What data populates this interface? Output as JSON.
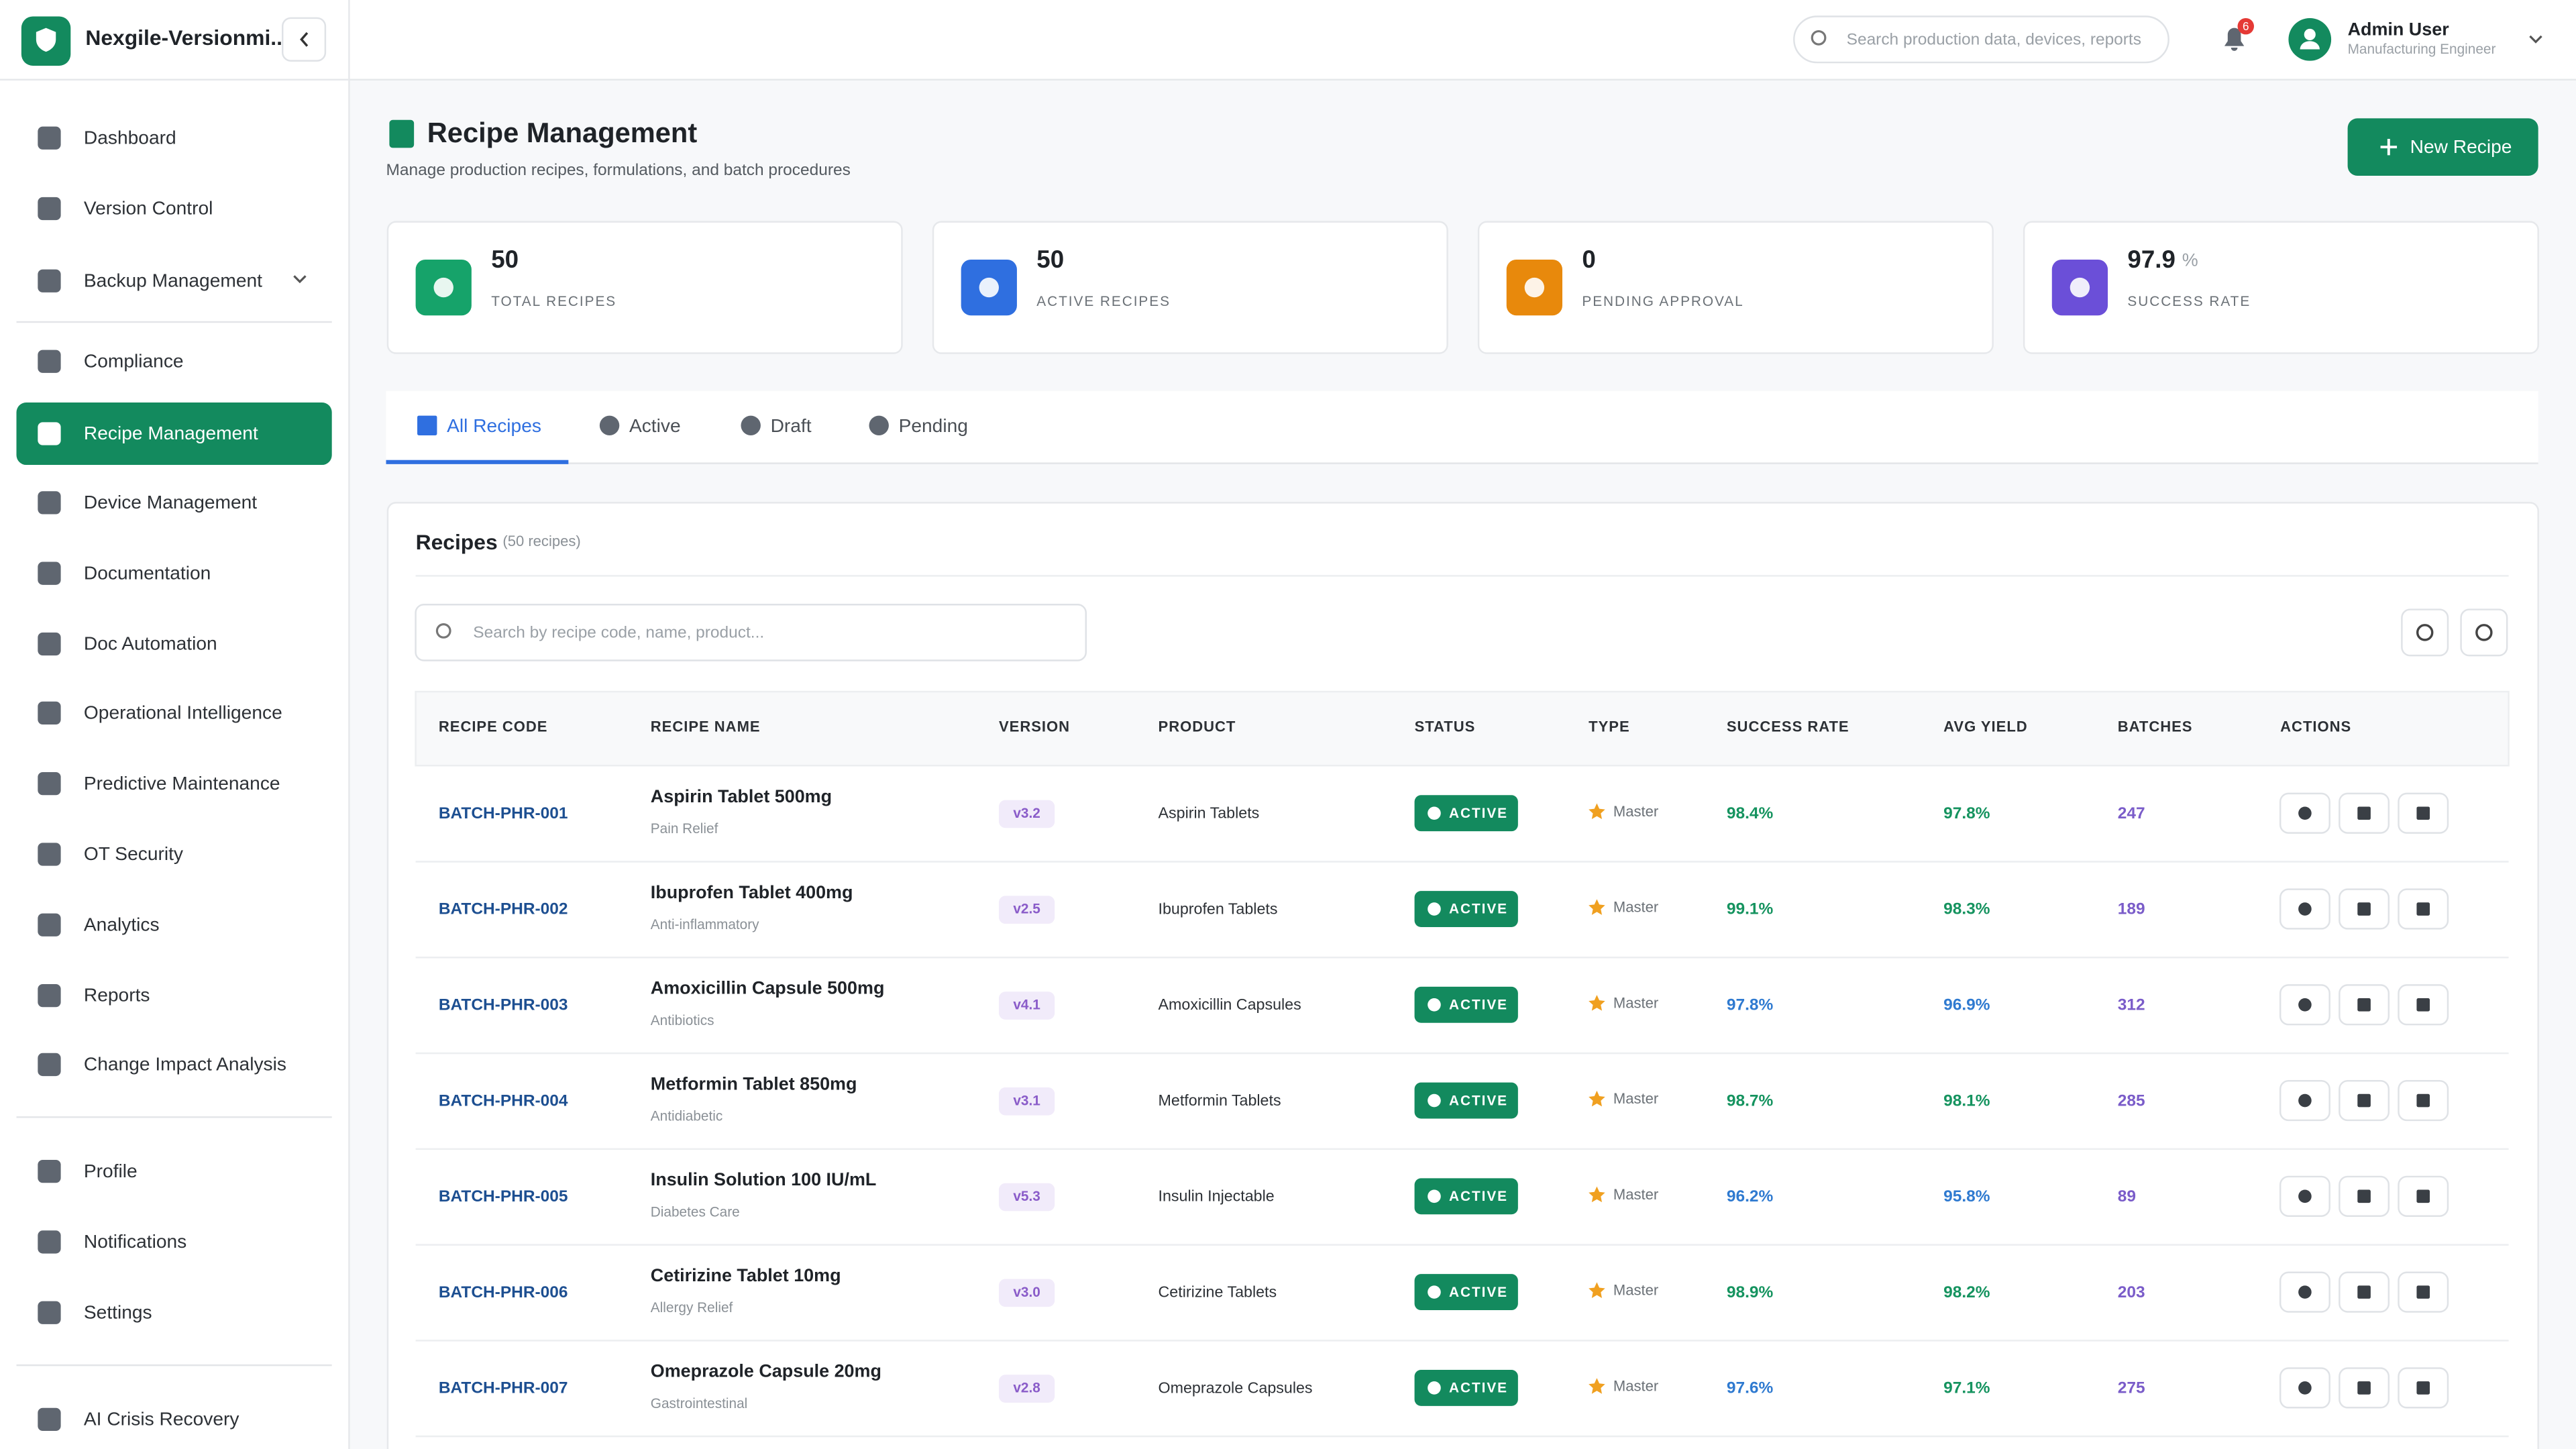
{
  "header": {
    "app_name": "Nexgile-Versionmi...",
    "search_placeholder": "Search production data, devices, reports",
    "notification_count": "6",
    "user_name": "Admin User",
    "user_role": "Manufacturing Engineer"
  },
  "sidebar": {
    "groups": [
      [
        {
          "label": "Dashboard"
        },
        {
          "label": "Version Control"
        },
        {
          "label": "Backup Management",
          "expandable": true
        }
      ],
      [
        {
          "label": "Compliance"
        },
        {
          "label": "Recipe Management",
          "active": true
        },
        {
          "label": "Device Management"
        },
        {
          "label": "Documentation"
        },
        {
          "label": "Doc Automation"
        },
        {
          "label": "Operational Intelligence"
        },
        {
          "label": "Predictive Maintenance"
        },
        {
          "label": "OT Security"
        },
        {
          "label": "Analytics"
        },
        {
          "label": "Reports"
        },
        {
          "label": "Change Impact Analysis"
        }
      ],
      [
        {
          "label": "Profile"
        },
        {
          "label": "Notifications"
        },
        {
          "label": "Settings"
        }
      ],
      [
        {
          "label": "AI Crisis Recovery"
        }
      ]
    ]
  },
  "page": {
    "title": "Recipe Management",
    "subtitle": "Manage production recipes, formulations, and batch procedures",
    "primary_action": "New Recipe"
  },
  "stats": [
    {
      "value": 50,
      "label": "TOTAL RECIPES",
      "color": "#16a36a"
    },
    {
      "value": 50,
      "label": "ACTIVE RECIPES",
      "color": "#2f6fe0"
    },
    {
      "value": 0,
      "label": "PENDING APPROVAL",
      "color": "#e8890c"
    },
    {
      "value": 97.9,
      "unit": "%",
      "label": "SUCCESS RATE",
      "color": "#6b4fd8"
    }
  ],
  "tabs": [
    {
      "label": "All Recipes",
      "active": true
    },
    {
      "label": "Active"
    },
    {
      "label": "Draft"
    },
    {
      "label": "Pending"
    }
  ],
  "table": {
    "title": "Recipes",
    "count_label": "(50 recipes)",
    "search_placeholder": "Search by recipe code, name, product...",
    "columns": [
      "RECIPE CODE",
      "RECIPE NAME",
      "VERSION",
      "PRODUCT",
      "STATUS",
      "TYPE",
      "SUCCESS RATE",
      "AVG YIELD",
      "BATCHES",
      "ACTIONS"
    ],
    "rows": [
      {
        "code": "BATCH-PHR-001",
        "name": "Aspirin Tablet 500mg",
        "category": "Pain Relief",
        "version": "v3.2",
        "product": "Aspirin Tablets",
        "status": "ACTIVE",
        "type": "Master",
        "success_rate": "98.4%",
        "avg_yield": "97.8%",
        "batches": "247",
        "success_color": "#15935f",
        "yield_color": "#15935f"
      },
      {
        "code": "BATCH-PHR-002",
        "name": "Ibuprofen Tablet 400mg",
        "category": "Anti-inflammatory",
        "version": "v2.5",
        "product": "Ibuprofen Tablets",
        "status": "ACTIVE",
        "type": "Master",
        "success_rate": "99.1%",
        "avg_yield": "98.3%",
        "batches": "189",
        "success_color": "#15935f",
        "yield_color": "#15935f"
      },
      {
        "code": "BATCH-PHR-003",
        "name": "Amoxicillin Capsule 500mg",
        "category": "Antibiotics",
        "version": "v4.1",
        "product": "Amoxicillin Capsules",
        "status": "ACTIVE",
        "type": "Master",
        "success_rate": "97.8%",
        "avg_yield": "96.9%",
        "batches": "312",
        "success_color": "#2f7ad0",
        "yield_color": "#2f7ad0"
      },
      {
        "code": "BATCH-PHR-004",
        "name": "Metformin Tablet 850mg",
        "category": "Antidiabetic",
        "version": "v3.1",
        "product": "Metformin Tablets",
        "status": "ACTIVE",
        "type": "Master",
        "success_rate": "98.7%",
        "avg_yield": "98.1%",
        "batches": "285",
        "success_color": "#15935f",
        "yield_color": "#15935f"
      },
      {
        "code": "BATCH-PHR-005",
        "name": "Insulin Solution 100 IU/mL",
        "category": "Diabetes Care",
        "version": "v5.3",
        "product": "Insulin Injectable",
        "status": "ACTIVE",
        "type": "Master",
        "success_rate": "96.2%",
        "avg_yield": "95.8%",
        "batches": "89",
        "success_color": "#2f7ad0",
        "yield_color": "#2f7ad0"
      },
      {
        "code": "BATCH-PHR-006",
        "name": "Cetirizine Tablet 10mg",
        "category": "Allergy Relief",
        "version": "v3.0",
        "product": "Cetirizine Tablets",
        "status": "ACTIVE",
        "type": "Master",
        "success_rate": "98.9%",
        "avg_yield": "98.2%",
        "batches": "203",
        "success_color": "#15935f",
        "yield_color": "#15935f"
      },
      {
        "code": "BATCH-PHR-007",
        "name": "Omeprazole Capsule 20mg",
        "category": "Gastrointestinal",
        "version": "v2.8",
        "product": "Omeprazole Capsules",
        "status": "ACTIVE",
        "type": "Master",
        "success_rate": "97.6%",
        "avg_yield": "97.1%",
        "batches": "275",
        "success_color": "#2f7ad0",
        "yield_color": "#15935f"
      }
    ]
  }
}
